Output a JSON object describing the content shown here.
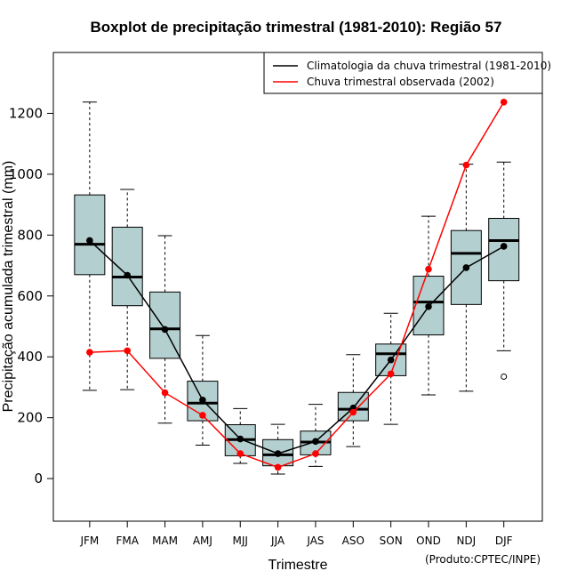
{
  "chart_data": {
    "type": "boxplot",
    "title": "Boxplot de precipitação trimestral (1981-2010): Região 57",
    "xlabel": "Trimestre",
    "ylabel": "Precipitação acumulada trimestral (mm)",
    "ylim": [
      -140,
      1400
    ],
    "yticks": [
      0,
      200,
      400,
      600,
      800,
      1000,
      1200
    ],
    "categories": [
      "JFM",
      "FMA",
      "MAM",
      "AMJ",
      "MJJ",
      "JJA",
      "JAS",
      "ASO",
      "SON",
      "OND",
      "NDJ",
      "DJF"
    ],
    "boxes": [
      {
        "whisker_low": 290,
        "q1": 670,
        "median": 770,
        "q3": 932,
        "whisker_high": 1237
      },
      {
        "whisker_low": 292,
        "q1": 568,
        "median": 662,
        "q3": 826,
        "whisker_high": 950
      },
      {
        "whisker_low": 182,
        "q1": 395,
        "median": 492,
        "q3": 613,
        "whisker_high": 798
      },
      {
        "whisker_low": 110,
        "q1": 190,
        "median": 248,
        "q3": 320,
        "whisker_high": 470
      },
      {
        "whisker_low": 50,
        "q1": 75,
        "median": 128,
        "q3": 177,
        "whisker_high": 230
      },
      {
        "whisker_low": 15,
        "q1": 42,
        "median": 78,
        "q3": 128,
        "whisker_high": 178
      },
      {
        "whisker_low": 40,
        "q1": 78,
        "median": 120,
        "q3": 156,
        "whisker_high": 244
      },
      {
        "whisker_low": 105,
        "q1": 190,
        "median": 228,
        "q3": 283,
        "whisker_high": 407
      },
      {
        "whisker_low": 178,
        "q1": 338,
        "median": 410,
        "q3": 442,
        "whisker_high": 543
      },
      {
        "whisker_low": 275,
        "q1": 472,
        "median": 580,
        "q3": 665,
        "whisker_high": 862
      },
      {
        "whisker_low": 287,
        "q1": 572,
        "median": 740,
        "q3": 815,
        "whisker_high": 1033
      },
      {
        "whisker_low": 420,
        "q1": 650,
        "median": 782,
        "q3": 855,
        "whisker_high": 1040
      }
    ],
    "outliers": [
      {
        "category": "DJF",
        "value": 335
      }
    ],
    "series": [
      {
        "name": "Climatologia da chuva trimestral (1981-2010)",
        "color": "#000000",
        "values": [
          782,
          668,
          490,
          258,
          130,
          82,
          122,
          232,
          390,
          565,
          693,
          763
        ]
      },
      {
        "name": "Chuva trimestral observada (2002)",
        "color": "#ff0000",
        "values": [
          415,
          420,
          282,
          208,
          82,
          37,
          82,
          218,
          344,
          688,
          1030,
          1237
        ]
      }
    ],
    "box_fill": "#b4cfcf",
    "legend_position": "top-right",
    "note": "(Produto:CPTEC/INPE)"
  }
}
